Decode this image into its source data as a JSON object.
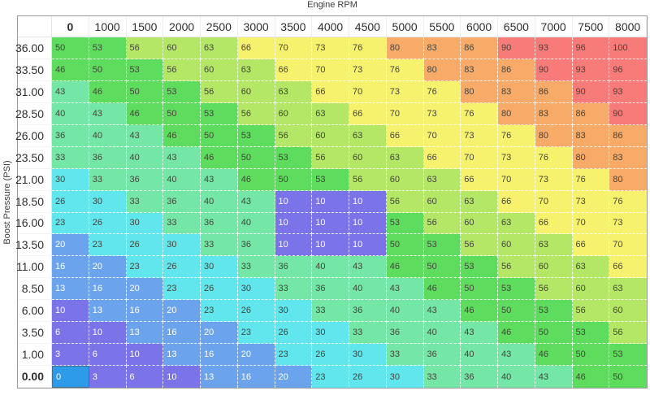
{
  "axis": {
    "x_title": "Engine RPM",
    "y_title": "Boost Pressure (PSI)"
  },
  "table": {
    "col_headers": [
      "0",
      "1000",
      "1500",
      "2000",
      "2500",
      "3000",
      "3500",
      "4000",
      "4500",
      "5000",
      "5500",
      "6000",
      "6500",
      "7000",
      "7500",
      "8000"
    ],
    "row_headers": [
      "36.00",
      "33.50",
      "31.00",
      "28.50",
      "26.00",
      "23.50",
      "21.00",
      "18.50",
      "16.00",
      "13.50",
      "11.00",
      "8.50",
      "6.00",
      "3.50",
      "1.00",
      "0.00"
    ],
    "rows": [
      [
        50,
        53,
        56,
        60,
        63,
        66,
        70,
        73,
        76,
        80,
        83,
        86,
        90,
        93,
        96,
        100
      ],
      [
        46,
        50,
        53,
        56,
        60,
        63,
        66,
        70,
        73,
        76,
        80,
        83,
        86,
        90,
        93,
        96
      ],
      [
        43,
        46,
        50,
        53,
        56,
        60,
        63,
        66,
        70,
        73,
        76,
        80,
        83,
        86,
        90,
        93
      ],
      [
        40,
        43,
        46,
        50,
        53,
        56,
        60,
        63,
        66,
        70,
        73,
        76,
        80,
        83,
        86,
        90
      ],
      [
        36,
        40,
        43,
        46,
        50,
        53,
        56,
        60,
        63,
        66,
        70,
        73,
        76,
        80,
        83,
        86
      ],
      [
        33,
        36,
        40,
        43,
        46,
        50,
        53,
        56,
        60,
        63,
        66,
        70,
        73,
        76,
        80,
        83
      ],
      [
        30,
        33,
        36,
        40,
        43,
        46,
        50,
        53,
        56,
        60,
        63,
        66,
        70,
        73,
        76,
        80
      ],
      [
        26,
        30,
        33,
        36,
        40,
        43,
        10,
        10,
        10,
        56,
        60,
        63,
        66,
        70,
        73,
        76
      ],
      [
        23,
        26,
        30,
        33,
        36,
        40,
        10,
        10,
        10,
        53,
        56,
        60,
        63,
        66,
        70,
        73
      ],
      [
        20,
        23,
        26,
        30,
        33,
        36,
        10,
        10,
        10,
        50,
        53,
        56,
        60,
        63,
        66,
        70
      ],
      [
        16,
        20,
        23,
        26,
        30,
        33,
        36,
        40,
        43,
        46,
        50,
        53,
        56,
        60,
        63,
        66
      ],
      [
        13,
        16,
        20,
        23,
        26,
        30,
        33,
        36,
        40,
        43,
        46,
        50,
        53,
        56,
        60,
        63
      ],
      [
        10,
        13,
        16,
        20,
        23,
        26,
        30,
        33,
        36,
        40,
        43,
        46,
        50,
        53,
        56,
        60
      ],
      [
        6,
        10,
        13,
        16,
        20,
        23,
        26,
        30,
        33,
        36,
        40,
        43,
        46,
        50,
        53,
        56
      ],
      [
        3,
        6,
        10,
        13,
        16,
        20,
        23,
        26,
        30,
        33,
        36,
        40,
        43,
        46,
        50,
        53
      ],
      [
        0,
        3,
        6,
        10,
        13,
        16,
        20,
        23,
        26,
        30,
        33,
        36,
        40,
        43,
        46,
        50
      ]
    ],
    "cursor": {
      "row": 15,
      "col": 0
    }
  },
  "colors": {
    "bands": [
      {
        "max": 12,
        "bg": "#7b73e8",
        "fg": "#ffffff"
      },
      {
        "max": 22,
        "bg": "#6ba4ec",
        "fg": "#ffffff"
      },
      {
        "max": 31,
        "bg": "#62e6ee",
        "fg": "#45453c"
      },
      {
        "max": 44,
        "bg": "#74e7a6",
        "fg": "#45453c"
      },
      {
        "max": 54,
        "bg": "#5edc5e",
        "fg": "#45453c"
      },
      {
        "max": 64,
        "bg": "#b3e765",
        "fg": "#45453c"
      },
      {
        "max": 78,
        "bg": "#f7f26e",
        "fg": "#45453c"
      },
      {
        "max": 88,
        "bg": "#f8ab69",
        "fg": "#45453c"
      },
      {
        "max": 100,
        "bg": "#f77b79",
        "fg": "#45453c"
      }
    ],
    "cursor_cell": {
      "bg": "#2d9be8",
      "border": "#41708f",
      "fg": "#ffffff"
    },
    "table_border": "#9a9a9a"
  }
}
